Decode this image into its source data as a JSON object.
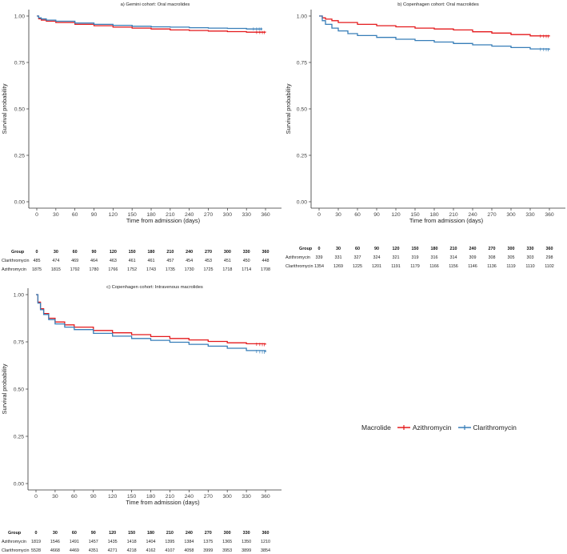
{
  "chart_data": [
    {
      "type": "line",
      "title": "a) Gemini cohort: Oral macrolides",
      "xlabel": "Time from admission (days)",
      "ylabel": "Survival probability",
      "xlim": [
        0,
        365
      ],
      "ylim": [
        0,
        1
      ],
      "xticks": [
        "0",
        "30",
        "60",
        "90",
        "120",
        "150",
        "180",
        "210",
        "240",
        "270",
        "300",
        "330",
        "360"
      ],
      "yticks": [
        "0.00",
        "0.25",
        "0.50",
        "0.75",
        "1.00"
      ],
      "series": [
        {
          "name": "Azithromycin",
          "color": "#e41a1c",
          "x": [
            0,
            3,
            7,
            15,
            30,
            60,
            90,
            120,
            150,
            180,
            210,
            240,
            270,
            300,
            330,
            360
          ],
          "y": [
            1.0,
            0.985,
            0.978,
            0.972,
            0.965,
            0.955,
            0.948,
            0.94,
            0.935,
            0.93,
            0.925,
            0.922,
            0.919,
            0.916,
            0.913,
            0.911
          ]
        },
        {
          "name": "Clarithromycin",
          "color": "#377eb8",
          "x": [
            0,
            3,
            7,
            15,
            30,
            60,
            90,
            120,
            150,
            180,
            210,
            240,
            270,
            300,
            330,
            355
          ],
          "y": [
            1.0,
            0.99,
            0.984,
            0.978,
            0.972,
            0.962,
            0.955,
            0.95,
            0.945,
            0.942,
            0.94,
            0.937,
            0.935,
            0.933,
            0.93,
            0.93
          ]
        }
      ],
      "risk_table": {
        "header": "Group",
        "times": [
          "0",
          "30",
          "60",
          "90",
          "120",
          "150",
          "180",
          "210",
          "240",
          "270",
          "300",
          "330",
          "360"
        ],
        "rows": [
          {
            "label": "Clarithromycin",
            "values": [
              "485",
              "474",
              "469",
              "464",
              "463",
              "461",
              "461",
              "457",
              "454",
              "453",
              "451",
              "450",
              "448"
            ]
          },
          {
            "label": "Azithromycin",
            "values": [
              "1875",
              "1815",
              "1792",
              "1780",
              "1766",
              "1752",
              "1743",
              "1735",
              "1730",
              "1725",
              "1718",
              "1714",
              "1708"
            ]
          }
        ]
      }
    },
    {
      "type": "line",
      "title": "b) Copenhagen cohort: Oral macrolides",
      "xlabel": "Time from admission (days)",
      "ylabel": "Survival probability",
      "xlim": [
        0,
        365
      ],
      "ylim": [
        0,
        1
      ],
      "xticks": [
        "0",
        "30",
        "60",
        "90",
        "120",
        "150",
        "180",
        "210",
        "240",
        "270",
        "300",
        "330",
        "360"
      ],
      "yticks": [
        "0.00",
        "0.25",
        "0.50",
        "0.75",
        "1.00"
      ],
      "series": [
        {
          "name": "Azithromycin",
          "color": "#e41a1c",
          "x": [
            0,
            5,
            10,
            20,
            30,
            60,
            90,
            120,
            150,
            180,
            210,
            240,
            270,
            300,
            330,
            360
          ],
          "y": [
            1.0,
            0.99,
            0.983,
            0.975,
            0.965,
            0.955,
            0.948,
            0.942,
            0.935,
            0.93,
            0.925,
            0.915,
            0.908,
            0.9,
            0.893,
            0.89
          ]
        },
        {
          "name": "Clarithromycin",
          "color": "#377eb8",
          "x": [
            0,
            5,
            10,
            20,
            30,
            45,
            60,
            90,
            120,
            150,
            180,
            210,
            240,
            270,
            300,
            330,
            360
          ],
          "y": [
            1.0,
            0.975,
            0.955,
            0.935,
            0.92,
            0.905,
            0.895,
            0.885,
            0.875,
            0.868,
            0.86,
            0.852,
            0.845,
            0.838,
            0.83,
            0.823,
            0.818
          ]
        }
      ],
      "risk_table": {
        "header": "Group",
        "times": [
          "0",
          "30",
          "60",
          "90",
          "120",
          "150",
          "180",
          "210",
          "240",
          "270",
          "300",
          "330",
          "360"
        ],
        "rows": [
          {
            "label": "Azithromycin",
            "values": [
              "339",
              "331",
              "327",
              "324",
              "321",
              "319",
              "316",
              "314",
              "309",
              "308",
              "305",
              "303",
              "298"
            ]
          },
          {
            "label": "Clarithromycin",
            "values": [
              "1354",
              "1269",
              "1225",
              "1201",
              "1191",
              "1179",
              "1166",
              "1156",
              "1146",
              "1136",
              "1119",
              "1110",
              "1102"
            ]
          }
        ]
      }
    },
    {
      "type": "line",
      "title": "c) Copenhagen cohort: Intravenous macrolides",
      "xlabel": "Time from admission (days)",
      "ylabel": "Survival probability",
      "xlim": [
        0,
        365
      ],
      "ylim": [
        0,
        1
      ],
      "xticks": [
        "0",
        "30",
        "60",
        "90",
        "120",
        "150",
        "180",
        "210",
        "240",
        "270",
        "300",
        "330",
        "360"
      ],
      "yticks": [
        "0.00",
        "0.25",
        "0.50",
        "0.75",
        "1.00"
      ],
      "series": [
        {
          "name": "Azithromycin",
          "color": "#e41a1c",
          "x": [
            0,
            3,
            7,
            12,
            20,
            30,
            45,
            60,
            90,
            120,
            150,
            180,
            210,
            240,
            270,
            300,
            330,
            360
          ],
          "y": [
            1.0,
            0.96,
            0.925,
            0.9,
            0.875,
            0.855,
            0.84,
            0.828,
            0.81,
            0.798,
            0.788,
            0.778,
            0.768,
            0.76,
            0.752,
            0.745,
            0.74,
            0.735
          ]
        },
        {
          "name": "Clarithromycin",
          "color": "#377eb8",
          "x": [
            0,
            3,
            7,
            12,
            20,
            30,
            45,
            60,
            90,
            120,
            150,
            180,
            210,
            240,
            270,
            300,
            330,
            360
          ],
          "y": [
            1.0,
            0.955,
            0.92,
            0.895,
            0.868,
            0.845,
            0.828,
            0.815,
            0.795,
            0.78,
            0.768,
            0.758,
            0.748,
            0.737,
            0.727,
            0.716,
            0.704,
            0.695
          ]
        }
      ],
      "risk_table": {
        "header": "Group",
        "times": [
          "0",
          "30",
          "60",
          "90",
          "120",
          "150",
          "180",
          "210",
          "240",
          "270",
          "300",
          "330",
          "360"
        ],
        "rows": [
          {
            "label": "Azithromycin",
            "values": [
              "1819",
              "1546",
              "1491",
              "1457",
              "1435",
              "1418",
              "1404",
              "1395",
              "1384",
              "1375",
              "1365",
              "1350",
              "1210"
            ]
          },
          {
            "label": "Clarithromycin",
            "values": [
              "5528",
              "4668",
              "4469",
              "4351",
              "4271",
              "4218",
              "4162",
              "4107",
              "4058",
              "3999",
              "3953",
              "3899",
              "3854"
            ]
          }
        ]
      }
    }
  ],
  "legend": {
    "title": "Macrolide",
    "items": [
      {
        "label": "Azithromycin",
        "color": "#e41a1c"
      },
      {
        "label": "Clarithromycin",
        "color": "#377eb8"
      }
    ]
  }
}
